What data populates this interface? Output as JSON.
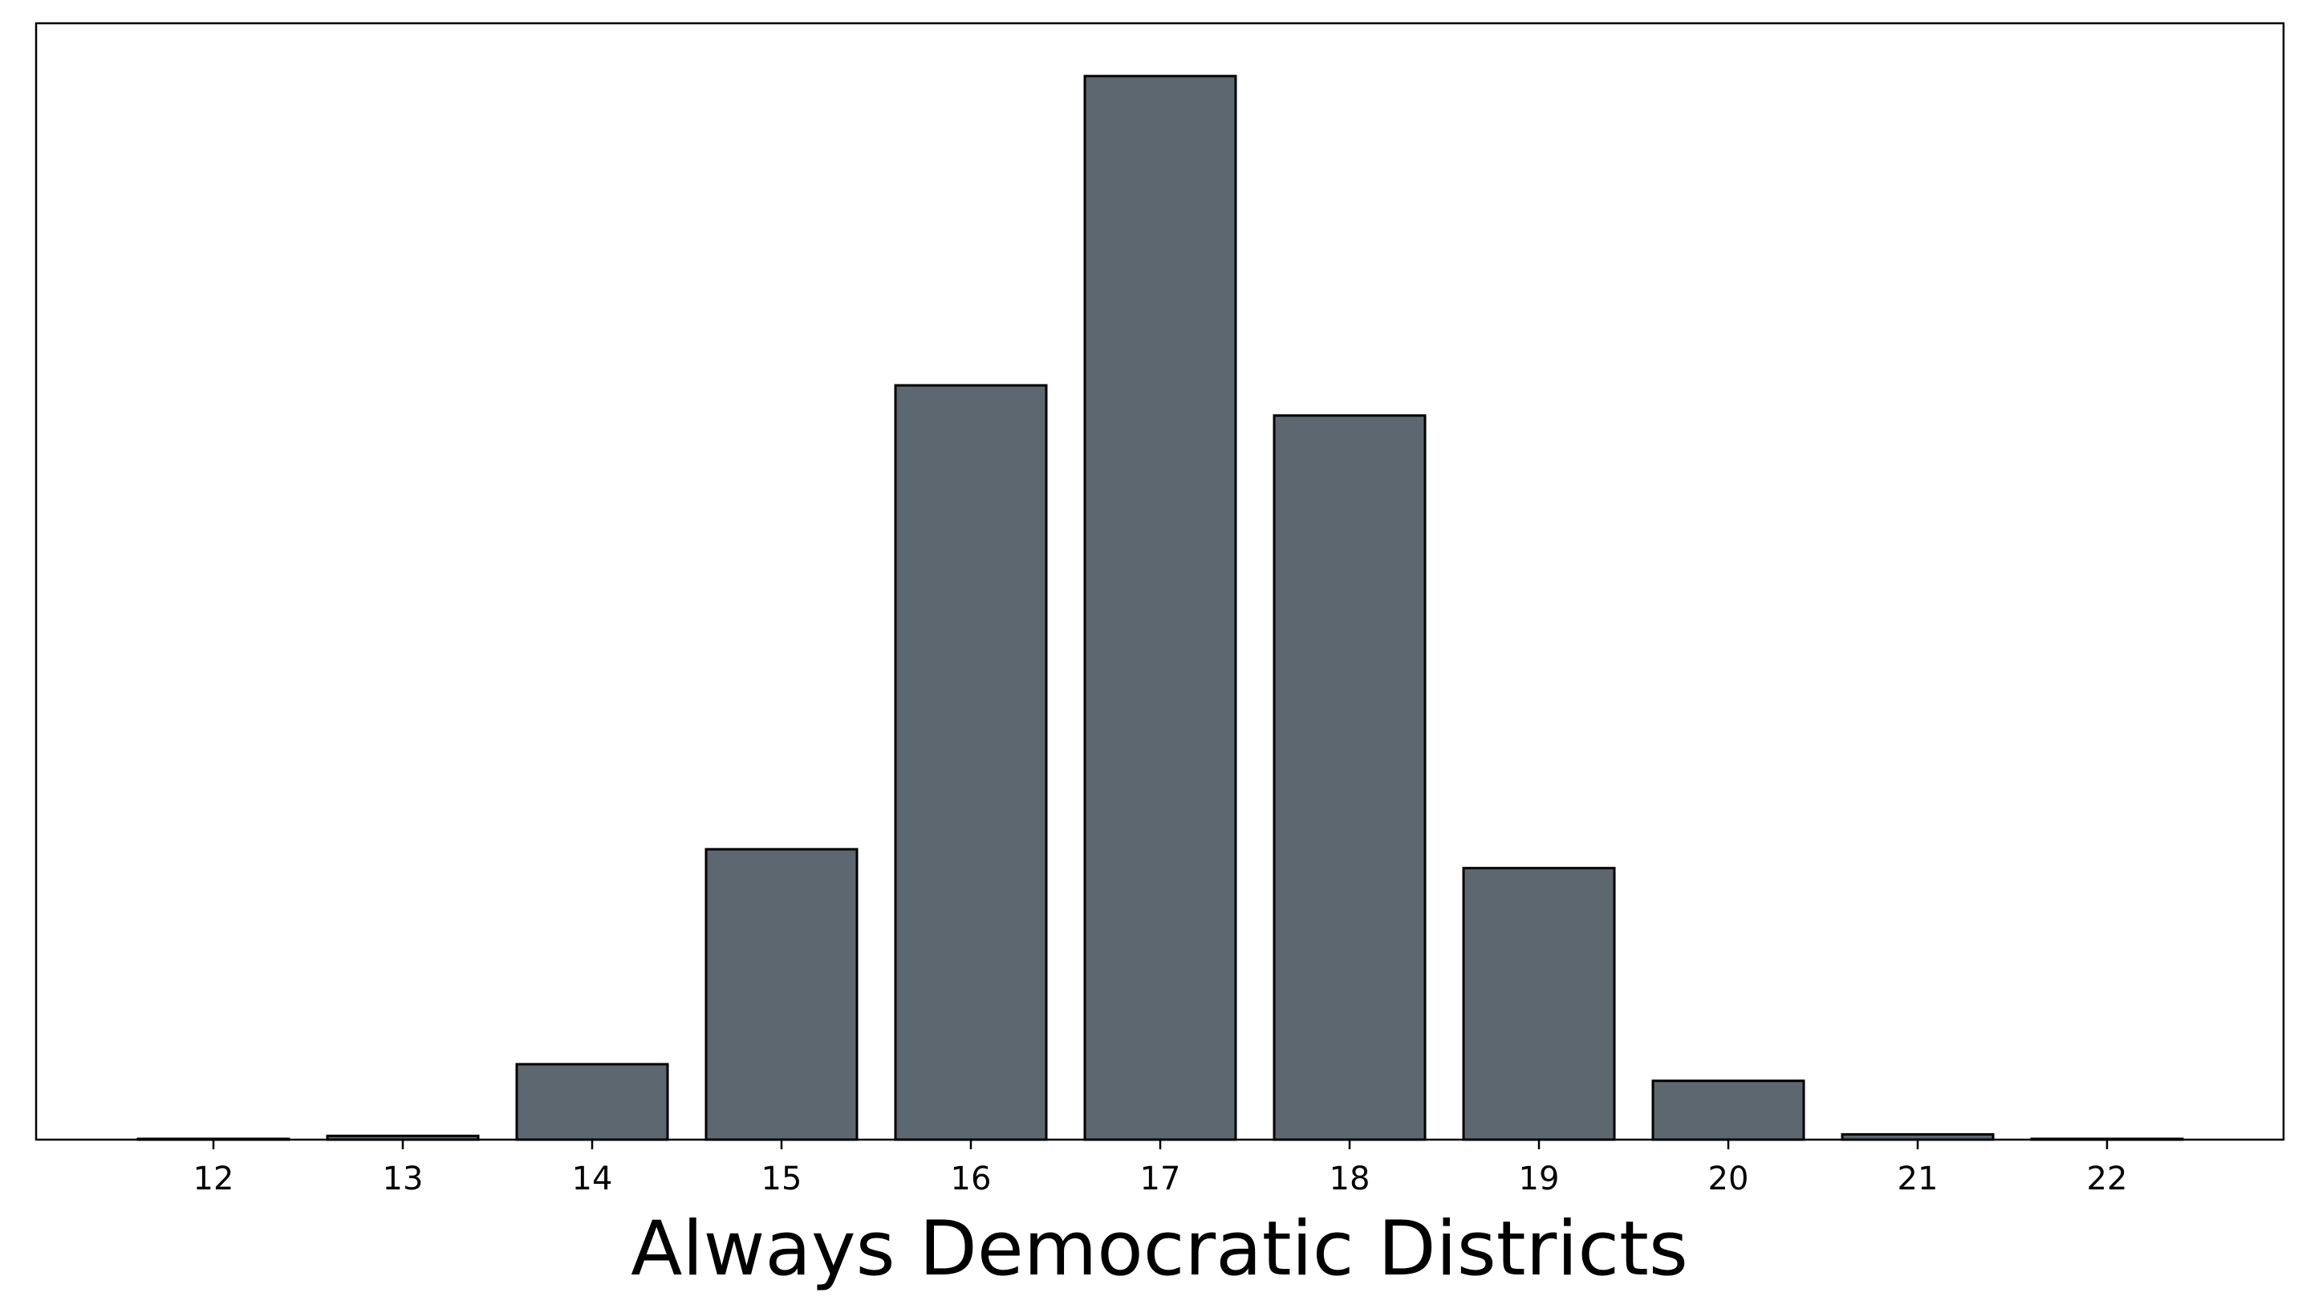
{
  "chart_data": {
    "type": "bar",
    "title": "",
    "xlabel": "Always Democratic Districts",
    "ylabel": "",
    "categories": [
      "12",
      "13",
      "14",
      "15",
      "16",
      "17",
      "18",
      "19",
      "20",
      "21",
      "22"
    ],
    "values": [
      0.05,
      0.5,
      10.0,
      38.5,
      100.0,
      141.0,
      96.0,
      36.0,
      7.8,
      0.7,
      0.1
    ],
    "ylim": [
      0,
      148
    ],
    "ytick_labels_shown": false,
    "grid": false,
    "legend": "none",
    "colors": {
      "bar_fill": "#5d6770",
      "bar_edge": "#000000",
      "axes": "#000000",
      "background": "#ffffff"
    }
  }
}
